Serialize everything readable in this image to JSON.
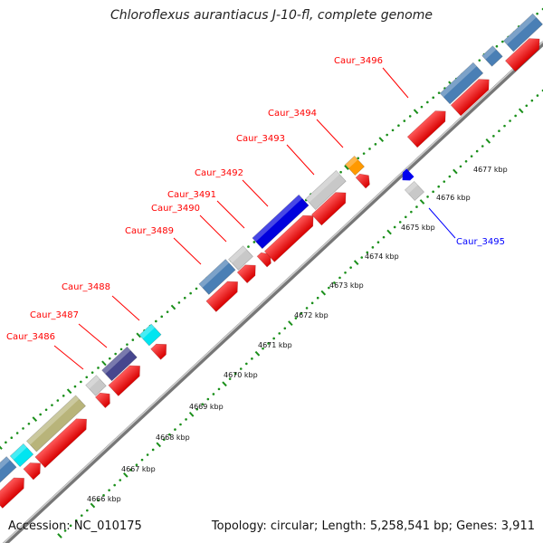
{
  "title": "Chloroflexus aurantiacus J-10-fl, complete genome",
  "footer": {
    "accession": "Accession: NC_010175",
    "summary": "Topology: circular; Length: 5,258,541 bp; Genes: 3,911"
  },
  "scale_ticks": [
    "4666 kbp",
    "4667 kbp",
    "4668 kbp",
    "4669 kbp",
    "4670 kbp",
    "4671 kbp",
    "4672 kbp",
    "4673 kbp",
    "4674 kbp",
    "4675 kbp",
    "4676 kbp",
    "4677 kbp"
  ],
  "gene_labels": [
    {
      "name": "Caur_3486",
      "color": "#ff0000"
    },
    {
      "name": "Caur_3487",
      "color": "#ff0000"
    },
    {
      "name": "Caur_3488",
      "color": "#ff0000"
    },
    {
      "name": "Caur_3489",
      "color": "#ff0000"
    },
    {
      "name": "Caur_3490",
      "color": "#ff0000"
    },
    {
      "name": "Caur_3491",
      "color": "#ff0000"
    },
    {
      "name": "Caur_3492",
      "color": "#ff0000"
    },
    {
      "name": "Caur_3493",
      "color": "#ff0000"
    },
    {
      "name": "Caur_3494",
      "color": "#ff0000"
    },
    {
      "name": "Caur_3495",
      "color": "#0000ff"
    },
    {
      "name": "Caur_3496",
      "color": "#ff0000"
    }
  ],
  "colors": {
    "backbone": "#9a9a9a",
    "cds": "#ff0000",
    "tick": "#1a8f1a",
    "steelblue": "#4a7fb5",
    "khaki": "#b8b47a",
    "cyan": "#00e5f0",
    "slate": "#46468e",
    "gray": "#c8c8c8",
    "blue": "#0000dd",
    "orange": "#ff9900"
  }
}
